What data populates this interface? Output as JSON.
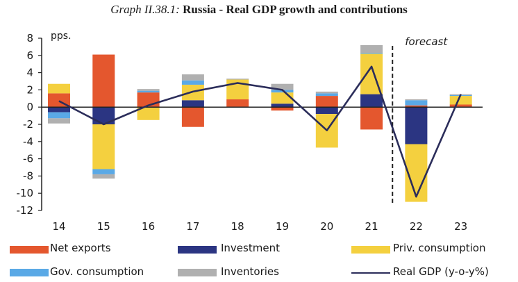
{
  "title": {
    "prefix": "Graph II.38.1:",
    "main": "Russia - Real GDP growth and contributions"
  },
  "colors": {
    "net_exports": "#e4572e",
    "investment": "#2b3582",
    "priv_consumption": "#f4d03f",
    "gov_consumption": "#5aa9e6",
    "inventories": "#b0b0b0",
    "real_gdp": "#2b2d5a"
  },
  "chart_data": {
    "type": "bar",
    "stacked": true,
    "title": "Russia - Real GDP growth and contributions",
    "ylabel": "pps.",
    "ylim": [
      -12,
      8
    ],
    "yticks": [
      8,
      6,
      4,
      2,
      0,
      -2,
      -4,
      -6,
      -8,
      -10,
      -12
    ],
    "categories": [
      "14",
      "15",
      "16",
      "17",
      "18",
      "19",
      "20",
      "21",
      "22",
      "23"
    ],
    "series": [
      {
        "name": "Net exports",
        "color": "#e4572e",
        "values": [
          1.6,
          6.1,
          1.7,
          -2.3,
          0.9,
          -0.4,
          1.3,
          -2.6,
          0.2,
          0.3
        ]
      },
      {
        "name": "Investment",
        "color": "#2b3582",
        "values": [
          -0.6,
          -2.0,
          0.0,
          0.8,
          0.0,
          0.4,
          -0.8,
          1.5,
          -4.3,
          0.0
        ]
      },
      {
        "name": "Priv. consumption",
        "color": "#f4d03f",
        "values": [
          1.1,
          -5.2,
          -1.5,
          1.8,
          2.3,
          1.3,
          -3.9,
          4.7,
          -6.7,
          1.0
        ]
      },
      {
        "name": "Gov. consumption",
        "color": "#5aa9e6",
        "values": [
          -0.7,
          -0.6,
          0.2,
          0.5,
          0.0,
          0.3,
          0.3,
          0.1,
          0.6,
          0.1
        ]
      },
      {
        "name": "Inventories",
        "color": "#b0b0b0",
        "values": [
          -0.6,
          -0.5,
          0.2,
          0.7,
          0.1,
          0.7,
          0.2,
          0.9,
          0.1,
          0.1
        ]
      }
    ],
    "line": {
      "name": "Real GDP (y-o-y%)",
      "color": "#2b2d5a",
      "values": [
        0.7,
        -2.0,
        0.2,
        1.8,
        2.8,
        2.0,
        -2.7,
        4.7,
        -10.4,
        1.5
      ]
    },
    "forecast_start": "22",
    "annotations": [
      "forecast"
    ]
  },
  "legend": [
    {
      "label": "Net exports",
      "key": "net_exports"
    },
    {
      "label": "Investment",
      "key": "investment"
    },
    {
      "label": "Priv. consumption",
      "key": "priv_consumption"
    },
    {
      "label": "Gov. consumption",
      "key": "gov_consumption"
    },
    {
      "label": "Inventories",
      "key": "inventories"
    },
    {
      "label": "Real GDP (y-o-y%)",
      "key": "real_gdp"
    }
  ]
}
